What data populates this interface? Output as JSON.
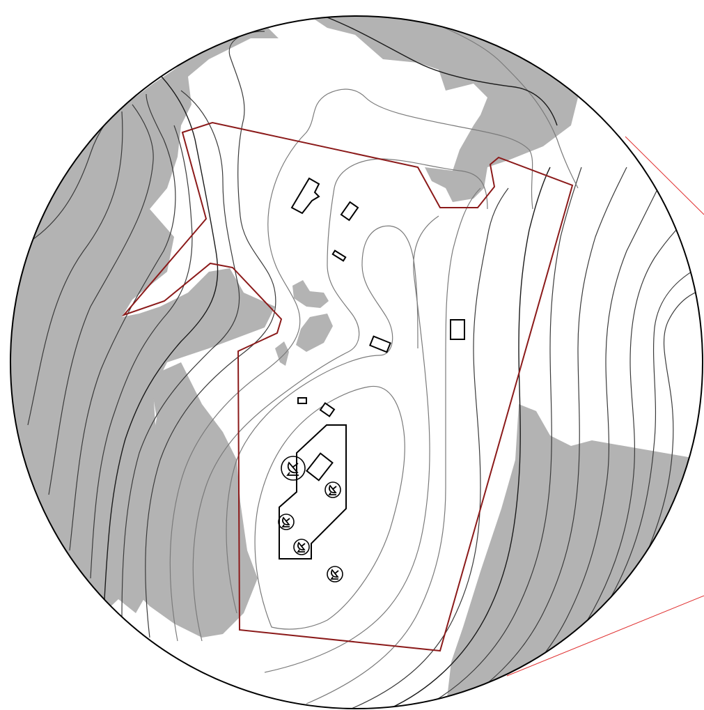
{
  "map": {
    "boundary_color": "#8b1a1a",
    "leader_color": "#e03030",
    "vegetation_color": "#b3b3b3",
    "icons": [
      "satellite-dish-icon",
      "satellite-dish-icon",
      "satellite-dish-icon",
      "satellite-dish-icon",
      "satellite-dish-icon"
    ]
  }
}
